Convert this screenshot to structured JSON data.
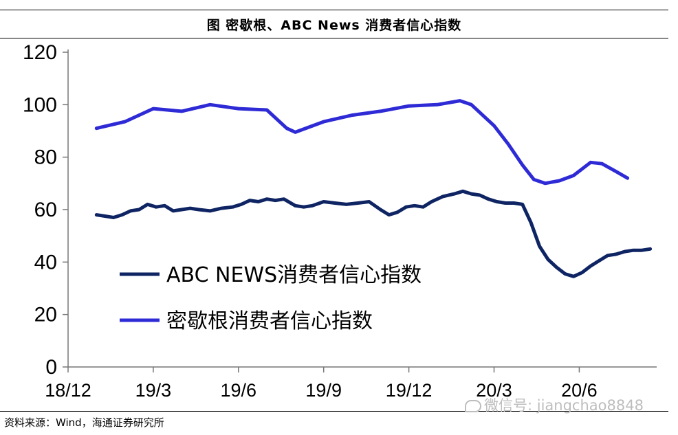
{
  "chart_data": {
    "type": "line",
    "title": "图  密歇根、ABC News 消费者信心指数",
    "xlabel": "",
    "ylabel": "",
    "ylim": [
      0,
      120
    ],
    "yticks": [
      0,
      20,
      40,
      60,
      80,
      100,
      120
    ],
    "xtick_labels": [
      "18/12",
      "19/3",
      "19/6",
      "19/9",
      "19/12",
      "20/3",
      "20/6"
    ],
    "x_range": [
      0,
      20.5
    ],
    "grid": false,
    "legend_position": "lower-left inside plot",
    "series": [
      {
        "name": "ABC NEWS消费者信心指数",
        "color": "#0f2563",
        "points": [
          [
            1.0,
            58
          ],
          [
            1.3,
            57.5
          ],
          [
            1.6,
            57
          ],
          [
            1.9,
            58
          ],
          [
            2.2,
            59.5
          ],
          [
            2.5,
            60
          ],
          [
            2.8,
            62
          ],
          [
            3.1,
            61
          ],
          [
            3.4,
            61.5
          ],
          [
            3.7,
            59.5
          ],
          [
            4.0,
            60
          ],
          [
            4.3,
            60.5
          ],
          [
            4.6,
            60
          ],
          [
            5.0,
            59.5
          ],
          [
            5.4,
            60.5
          ],
          [
            5.8,
            61
          ],
          [
            6.1,
            62
          ],
          [
            6.4,
            63.5
          ],
          [
            6.7,
            63
          ],
          [
            7.0,
            64
          ],
          [
            7.3,
            63.5
          ],
          [
            7.6,
            64
          ],
          [
            8.0,
            61.5
          ],
          [
            8.3,
            61
          ],
          [
            8.6,
            61.5
          ],
          [
            9.0,
            63
          ],
          [
            9.4,
            62.5
          ],
          [
            9.8,
            62
          ],
          [
            10.2,
            62.5
          ],
          [
            10.6,
            63
          ],
          [
            11.0,
            60
          ],
          [
            11.3,
            58
          ],
          [
            11.6,
            59
          ],
          [
            11.9,
            61
          ],
          [
            12.2,
            61.5
          ],
          [
            12.5,
            61
          ],
          [
            12.8,
            63
          ],
          [
            13.2,
            65
          ],
          [
            13.6,
            66
          ],
          [
            13.9,
            67
          ],
          [
            14.2,
            66
          ],
          [
            14.5,
            65.5
          ],
          [
            14.8,
            64
          ],
          [
            15.1,
            63
          ],
          [
            15.4,
            62.5
          ],
          [
            15.7,
            62.5
          ],
          [
            16.0,
            62
          ],
          [
            16.3,
            55
          ],
          [
            16.6,
            46
          ],
          [
            16.9,
            41
          ],
          [
            17.2,
            38
          ],
          [
            17.5,
            35.5
          ],
          [
            17.8,
            34.5
          ],
          [
            18.1,
            36
          ],
          [
            18.4,
            38.5
          ],
          [
            18.7,
            40.5
          ],
          [
            19.0,
            42.5
          ],
          [
            19.3,
            43
          ],
          [
            19.6,
            44
          ],
          [
            19.9,
            44.5
          ],
          [
            20.2,
            44.5
          ],
          [
            20.5,
            45
          ]
        ]
      },
      {
        "name": "密歇根消费者信心指数",
        "color": "#2e2bd6",
        "points": [
          [
            1.0,
            91
          ],
          [
            2.0,
            93.5
          ],
          [
            3.0,
            98.5
          ],
          [
            4.0,
            97.5
          ],
          [
            5.0,
            100
          ],
          [
            6.0,
            98.5
          ],
          [
            7.0,
            98
          ],
          [
            7.7,
            91
          ],
          [
            8.0,
            89.5
          ],
          [
            9.0,
            93.5
          ],
          [
            10.0,
            96
          ],
          [
            11.0,
            97.5
          ],
          [
            12.0,
            99.5
          ],
          [
            13.0,
            100
          ],
          [
            13.8,
            101.5
          ],
          [
            14.2,
            100
          ],
          [
            15.0,
            92
          ],
          [
            15.5,
            85
          ],
          [
            16.0,
            77
          ],
          [
            16.4,
            71.5
          ],
          [
            16.8,
            70
          ],
          [
            17.3,
            71
          ],
          [
            17.8,
            73
          ],
          [
            18.4,
            78
          ],
          [
            18.8,
            77.5
          ],
          [
            19.3,
            74.5
          ],
          [
            19.7,
            72
          ]
        ]
      }
    ],
    "source": "资料来源：Wind，海通证券研究所"
  },
  "watermark_text": "微信号: jiangchao8848"
}
